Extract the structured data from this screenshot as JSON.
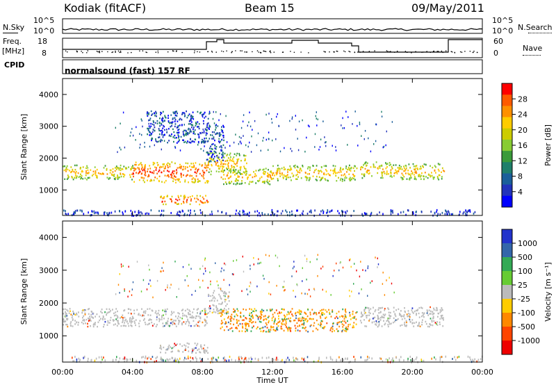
{
  "header": {
    "station": "Kodiak (fitACF)",
    "beam": "Beam 15",
    "date": "09/May/2011"
  },
  "top_panels": {
    "nsky_label": "N.Sky",
    "nsearch_label": "N.Search",
    "noise_ticks": [
      "10^5",
      "10^0"
    ],
    "freq_label": "Freq.",
    "freq_unit": "[MHz]",
    "freq_ticks": [
      "18",
      "8"
    ],
    "nave_label": "Nave",
    "nave_ticks": [
      "60",
      "0"
    ],
    "cpid_label": "CPID",
    "cpid_text": "normalsound (fast) 157 RF"
  },
  "chart_data": [
    {
      "type": "heatmap",
      "title": "",
      "ylabel": "Slant Range [km]",
      "xlabel": "",
      "ylim": [
        200,
        4500
      ],
      "y_ticks": [
        "1000",
        "2000",
        "3000",
        "4000"
      ],
      "x_ticks": [
        "00:00",
        "04:00",
        "08:00",
        "12:00",
        "16:00",
        "20:00",
        "00:00"
      ],
      "colorbar": {
        "label": "Power [dB]",
        "ticks": [
          "28",
          "24",
          "20",
          "16",
          "12",
          "8",
          "4"
        ],
        "colors": [
          "#ff0000",
          "#ff5a00",
          "#ff9000",
          "#ffcc00",
          "#cccc00",
          "#88cc33",
          "#3a9a3a",
          "#1f7f6a",
          "#1a5f9a",
          "#2233bb",
          "#0000ff"
        ]
      },
      "bands": [
        {
          "t": [
            0.0,
            4.0
          ],
          "r": [
            1350,
            1800
          ],
          "level": "mid"
        },
        {
          "t": [
            4.0,
            8.3
          ],
          "r": [
            1250,
            1900
          ],
          "level": "high"
        },
        {
          "t": [
            5.5,
            8.3
          ],
          "r": [
            550,
            850
          ],
          "level": "high"
        },
        {
          "t": [
            8.3,
            10.5
          ],
          "r": [
            1500,
            2200
          ],
          "level": "mid"
        },
        {
          "t": [
            9.0,
            12.0
          ],
          "r": [
            1200,
            1700
          ],
          "level": "mid"
        },
        {
          "t": [
            12.0,
            16.8
          ],
          "r": [
            1300,
            1800
          ],
          "level": "mid"
        },
        {
          "t": [
            17.0,
            18.8
          ],
          "r": [
            1400,
            1900
          ],
          "level": "mid"
        },
        {
          "t": [
            18.8,
            21.8
          ],
          "r": [
            1350,
            1850
          ],
          "level": "mid"
        },
        {
          "t": [
            4.8,
            8.3
          ],
          "r": [
            2500,
            3500
          ],
          "level": "low"
        },
        {
          "t": [
            8.2,
            9.2
          ],
          "r": [
            1900,
            3100
          ],
          "level": "low"
        }
      ]
    },
    {
      "type": "heatmap",
      "title": "",
      "ylabel": "Slant Range [km]",
      "xlabel": "Time UT",
      "ylim": [
        200,
        4500
      ],
      "y_ticks": [
        "1000",
        "2000",
        "3000",
        "4000"
      ],
      "x_ticks": [
        "00:00",
        "04:00",
        "08:00",
        "12:00",
        "16:00",
        "20:00",
        "00:00"
      ],
      "colorbar": {
        "label": "Velocity [m s⁻¹]",
        "ticks": [
          "1000",
          "500",
          "100",
          "25",
          "-25",
          "-100",
          "-500",
          "-1000"
        ],
        "colors": [
          "#2233cc",
          "#3366aa",
          "#33aa55",
          "#66cc33",
          "#bbbbbb",
          "#ffcc00",
          "#ff8800",
          "#ff4400",
          "#ee0000"
        ]
      },
      "bands": [
        {
          "t": [
            0.0,
            8.3
          ],
          "r": [
            1300,
            1850
          ],
          "v": "ground"
        },
        {
          "t": [
            5.5,
            8.3
          ],
          "r": [
            500,
            800
          ],
          "v": "ground"
        },
        {
          "t": [
            8.3,
            9.5
          ],
          "r": [
            1700,
            2500
          ],
          "v": "ground"
        },
        {
          "t": [
            9.0,
            16.8
          ],
          "r": [
            1150,
            1850
          ],
          "v": "neg"
        },
        {
          "t": [
            17.0,
            21.8
          ],
          "r": [
            1300,
            1900
          ],
          "v": "ground"
        }
      ]
    }
  ]
}
